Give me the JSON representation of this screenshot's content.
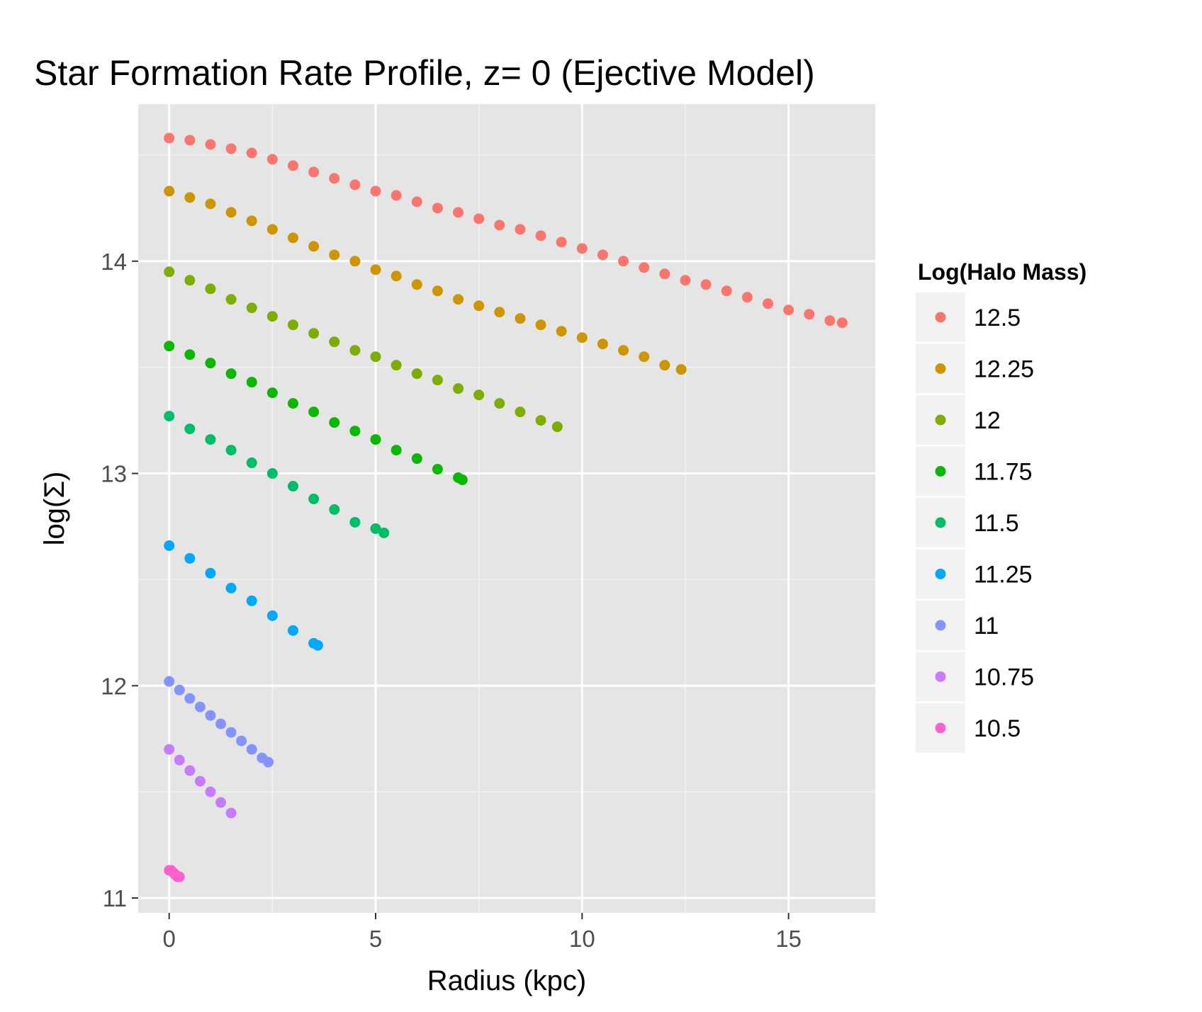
{
  "chart_data": {
    "type": "scatter",
    "title": "Star Formation Rate Profile, z= 0 (Ejective Model)",
    "xlabel": "Radius (kpc)",
    "ylabel": "log(Σ)",
    "xlim": [
      -0.75,
      17.1
    ],
    "ylim": [
      10.93,
      14.74
    ],
    "x_ticks": [
      0,
      5,
      10,
      15
    ],
    "y_ticks": [
      11,
      12,
      13,
      14
    ],
    "grid": true,
    "legend": {
      "title": "Log(Halo Mass)",
      "position": "right"
    },
    "series": [
      {
        "name": "12.5",
        "color": "#F8766D",
        "x": [
          0,
          0.5,
          1,
          1.5,
          2,
          2.5,
          3,
          3.5,
          4,
          4.5,
          5,
          5.5,
          6,
          6.5,
          7,
          7.5,
          8,
          8.5,
          9,
          9.5,
          10,
          10.5,
          11,
          11.5,
          12,
          12.5,
          13,
          13.5,
          14,
          14.5,
          15,
          15.5,
          16,
          16.3
        ],
        "y": [
          14.58,
          14.57,
          14.55,
          14.53,
          14.51,
          14.48,
          14.45,
          14.42,
          14.39,
          14.36,
          14.33,
          14.31,
          14.28,
          14.25,
          14.23,
          14.2,
          14.17,
          14.15,
          14.12,
          14.09,
          14.06,
          14.03,
          14.0,
          13.97,
          13.94,
          13.91,
          13.89,
          13.86,
          13.83,
          13.8,
          13.77,
          13.75,
          13.72,
          13.71
        ]
      },
      {
        "name": "12.25",
        "color": "#CD9600",
        "x": [
          0,
          0.5,
          1,
          1.5,
          2,
          2.5,
          3,
          3.5,
          4,
          4.5,
          5,
          5.5,
          6,
          6.5,
          7,
          7.5,
          8,
          8.5,
          9,
          9.5,
          10,
          10.5,
          11,
          11.5,
          12,
          12.4
        ],
        "y": [
          14.33,
          14.3,
          14.27,
          14.23,
          14.19,
          14.15,
          14.11,
          14.07,
          14.03,
          14.0,
          13.96,
          13.93,
          13.89,
          13.86,
          13.82,
          13.79,
          13.76,
          13.73,
          13.7,
          13.67,
          13.64,
          13.61,
          13.58,
          13.55,
          13.51,
          13.49
        ]
      },
      {
        "name": "12",
        "color": "#7CAE00",
        "x": [
          0,
          0.5,
          1,
          1.5,
          2,
          2.5,
          3,
          3.5,
          4,
          4.5,
          5,
          5.5,
          6,
          6.5,
          7,
          7.5,
          8,
          8.5,
          9,
          9.4
        ],
        "y": [
          13.95,
          13.91,
          13.87,
          13.82,
          13.78,
          13.74,
          13.7,
          13.66,
          13.62,
          13.58,
          13.55,
          13.51,
          13.47,
          13.44,
          13.4,
          13.37,
          13.33,
          13.29,
          13.25,
          13.22
        ]
      },
      {
        "name": "11.75",
        "color": "#0CB702",
        "x": [
          0,
          0.5,
          1,
          1.5,
          2,
          2.5,
          3,
          3.5,
          4,
          4.5,
          5,
          5.5,
          6,
          6.5,
          7,
          7.1
        ],
        "y": [
          13.6,
          13.56,
          13.52,
          13.47,
          13.43,
          13.38,
          13.33,
          13.29,
          13.24,
          13.2,
          13.16,
          13.11,
          13.07,
          13.02,
          12.98,
          12.97
        ]
      },
      {
        "name": "11.5",
        "color": "#00BE67",
        "x": [
          0,
          0.5,
          1,
          1.5,
          2,
          2.5,
          3,
          3.5,
          4,
          4.5,
          5,
          5.2
        ],
        "y": [
          13.27,
          13.21,
          13.16,
          13.11,
          13.05,
          13.0,
          12.94,
          12.88,
          12.83,
          12.77,
          12.74,
          12.72
        ]
      },
      {
        "name": "11.25",
        "color": "#00A9FF",
        "x": [
          0,
          0.5,
          1,
          1.5,
          2,
          2.5,
          3,
          3.5,
          3.6
        ],
        "y": [
          12.66,
          12.6,
          12.53,
          12.46,
          12.4,
          12.33,
          12.26,
          12.2,
          12.19
        ]
      },
      {
        "name": "11",
        "color": "#8494FF",
        "x": [
          0,
          0.25,
          0.5,
          0.75,
          1,
          1.25,
          1.5,
          1.75,
          2,
          2.25,
          2.4
        ],
        "y": [
          12.02,
          11.98,
          11.94,
          11.9,
          11.86,
          11.82,
          11.78,
          11.74,
          11.7,
          11.66,
          11.64
        ]
      },
      {
        "name": "10.75",
        "color": "#C77CFF",
        "x": [
          0,
          0.25,
          0.5,
          0.75,
          1,
          1.25,
          1.5
        ],
        "y": [
          11.7,
          11.65,
          11.6,
          11.55,
          11.5,
          11.45,
          11.4
        ]
      },
      {
        "name": "10.5",
        "color": "#FF61CC",
        "x": [
          0,
          0.05,
          0.1,
          0.15,
          0.2,
          0.25
        ],
        "y": [
          11.13,
          11.13,
          11.12,
          11.11,
          11.1,
          11.1
        ]
      }
    ]
  }
}
